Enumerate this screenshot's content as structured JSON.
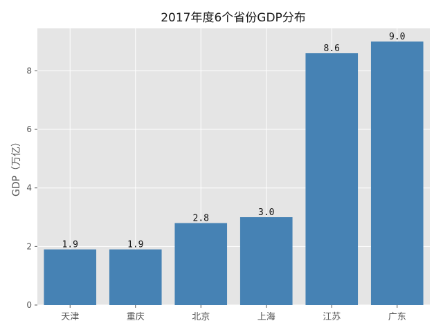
{
  "chart_data": {
    "type": "bar",
    "title": "2017年度6个省份GDP分布",
    "ylabel": "GDP（万亿）",
    "xlabel": "",
    "categories": [
      "天津",
      "重庆",
      "北京",
      "上海",
      "江苏",
      "广东"
    ],
    "values": [
      1.9,
      1.9,
      2.8,
      3.0,
      8.6,
      9.0
    ],
    "data_labels": [
      "1.9",
      "1.9",
      "2.8",
      "3.0",
      "8.6",
      "9.0"
    ],
    "ylim": [
      0,
      9.45
    ],
    "yticks": [
      0,
      2,
      4,
      6,
      8
    ],
    "grid": true,
    "legend": "none",
    "bar_color": "#4682b4",
    "background_color": "#e5e5e5",
    "grid_color": "#ffffff"
  }
}
